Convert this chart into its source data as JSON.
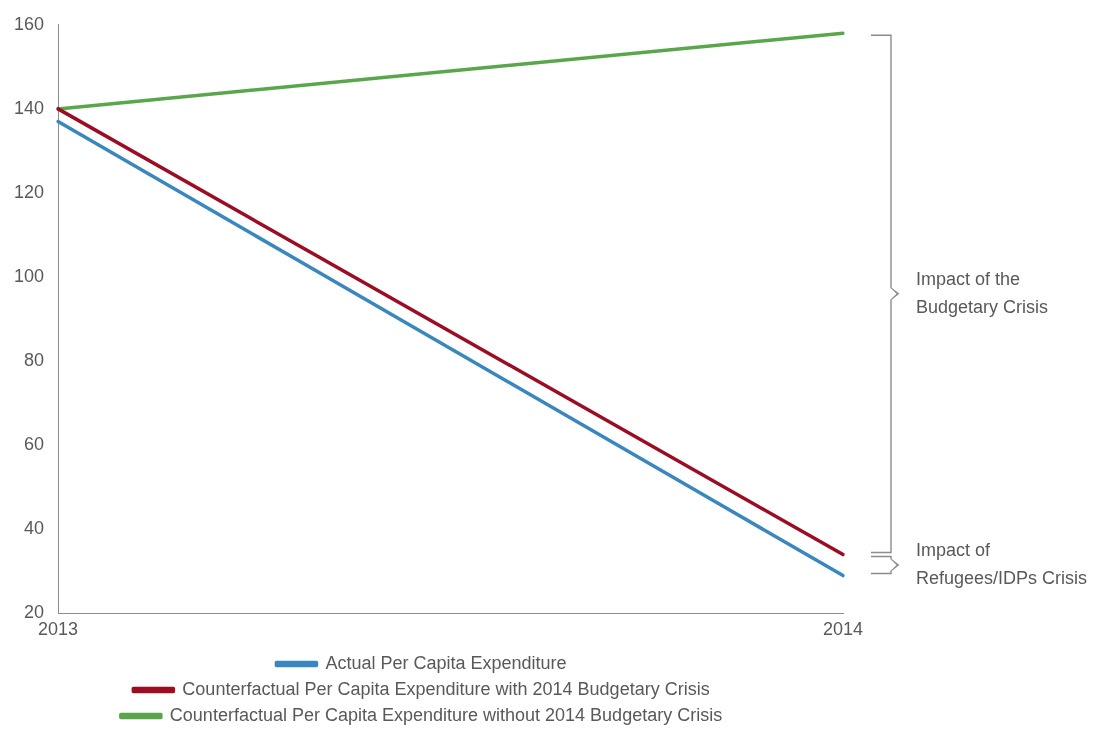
{
  "chart_data": {
    "type": "line",
    "categories": [
      "2013",
      "2014"
    ],
    "series": [
      {
        "name": "Actual Per Capita Expenditure",
        "color": "#3a87c0",
        "values": [
          137,
          29
        ]
      },
      {
        "name": "Counterfactual Per Capita Expenditure with 2014 Budgetary Crisis",
        "color": "#9b0d23",
        "values": [
          140,
          34
        ]
      },
      {
        "name": "Counterfactual Per Capita Expenditure without 2014 Budgetary Crisis",
        "color": "#5aa64a",
        "values": [
          140,
          158
        ]
      }
    ],
    "ylim": [
      20,
      160
    ],
    "yticks": [
      20,
      40,
      60,
      80,
      100,
      120,
      140,
      160
    ],
    "grid": false,
    "legend": "bottom",
    "marker": "none",
    "line_style": "solid",
    "annotations": [
      "Impact of the\nBudgetary Crisis",
      "Impact of\nRefugees/IDPs Crisis"
    ]
  }
}
